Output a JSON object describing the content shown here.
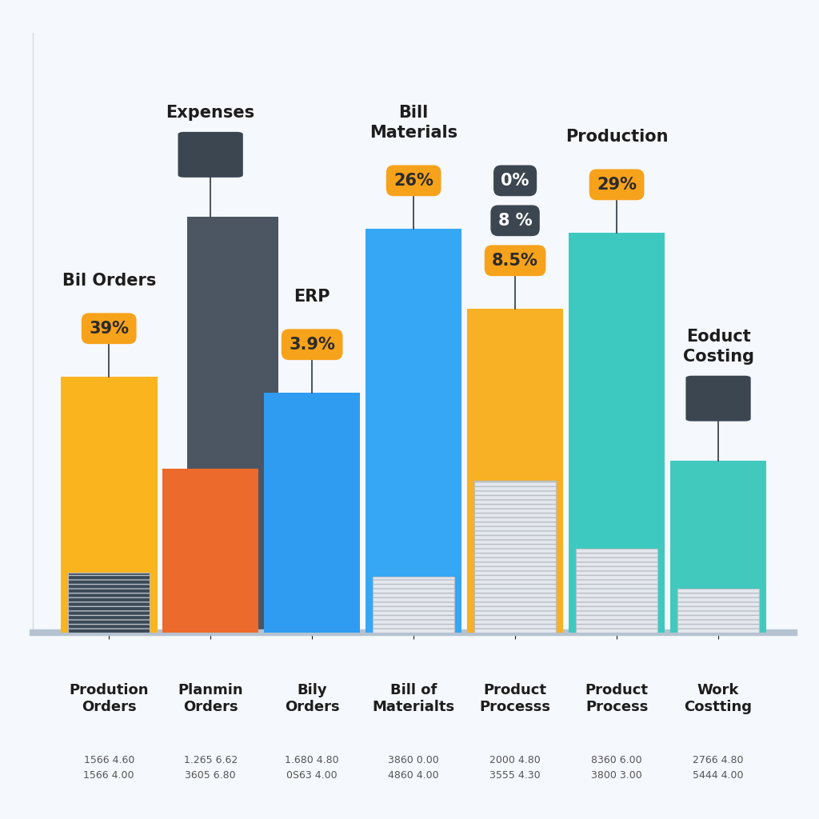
{
  "chart_data": {
    "type": "bar",
    "categories": [
      "Prodution Orders",
      "Planmin Orders",
      "Bily Orders",
      "Bill of Materialts",
      "Product Processs",
      "Product Process",
      "Work Costting"
    ],
    "series": [
      {
        "type": "bar",
        "color": "#4b5662",
        "values": [
          null,
          104,
          null,
          null,
          null,
          null,
          null
        ]
      },
      {
        "type": "bar",
        "values": [
          64,
          41,
          60,
          101,
          81,
          100,
          43
        ],
        "colors": [
          "#f9b41e",
          "#ec6a2c",
          "#2f9cf2",
          "#35a7f5",
          "#f8b024",
          "#3ec9c0",
          "#42c9bd"
        ]
      },
      {
        "type": "bar",
        "values": [
          15,
          null,
          null,
          14,
          38,
          21,
          11
        ],
        "colors": [
          "#3c4a57",
          null,
          null,
          "#e4e8ee",
          "#e4e8ee",
          "#e4e8ee",
          "#e4e8ee"
        ]
      }
    ],
    "ylim": [
      0,
      150
    ],
    "yticks": [],
    "tick_labels": "x",
    "annotations": [
      {
        "category": "Prodution Orders",
        "heading": "Bil Orders",
        "labels": [
          "39%"
        ]
      },
      {
        "category": "Planmin Orders",
        "heading": "Expenses",
        "labels": []
      },
      {
        "category": "Bily Orders",
        "heading": "ERP",
        "labels": [
          "3.9%"
        ]
      },
      {
        "category": "Bill of Materialts",
        "heading": "Bill Materials",
        "labels": [
          "26%"
        ]
      },
      {
        "category": "Product Processs",
        "labels": [
          "8.5%",
          "8 %",
          "0%"
        ]
      },
      {
        "category": "Product Process",
        "heading": "Production",
        "labels": [
          "29%"
        ]
      },
      {
        "category": "Work Costting",
        "heading": "Eoduct Costing",
        "labels": []
      }
    ],
    "category_details": [
      [
        "1566 4.60",
        "1566 4.00"
      ],
      [
        "1.265 6.62",
        "3605 6.80"
      ],
      [
        "1.680 4.80",
        "0S63 4.00"
      ],
      [
        "3860 0.00",
        "4860 4.00"
      ],
      [
        "2000 4.80",
        "3555 4.30"
      ],
      [
        "8360 6.00",
        "3800 3.00"
      ],
      [
        "2766 4.80",
        "5444 4.00"
      ]
    ]
  }
}
